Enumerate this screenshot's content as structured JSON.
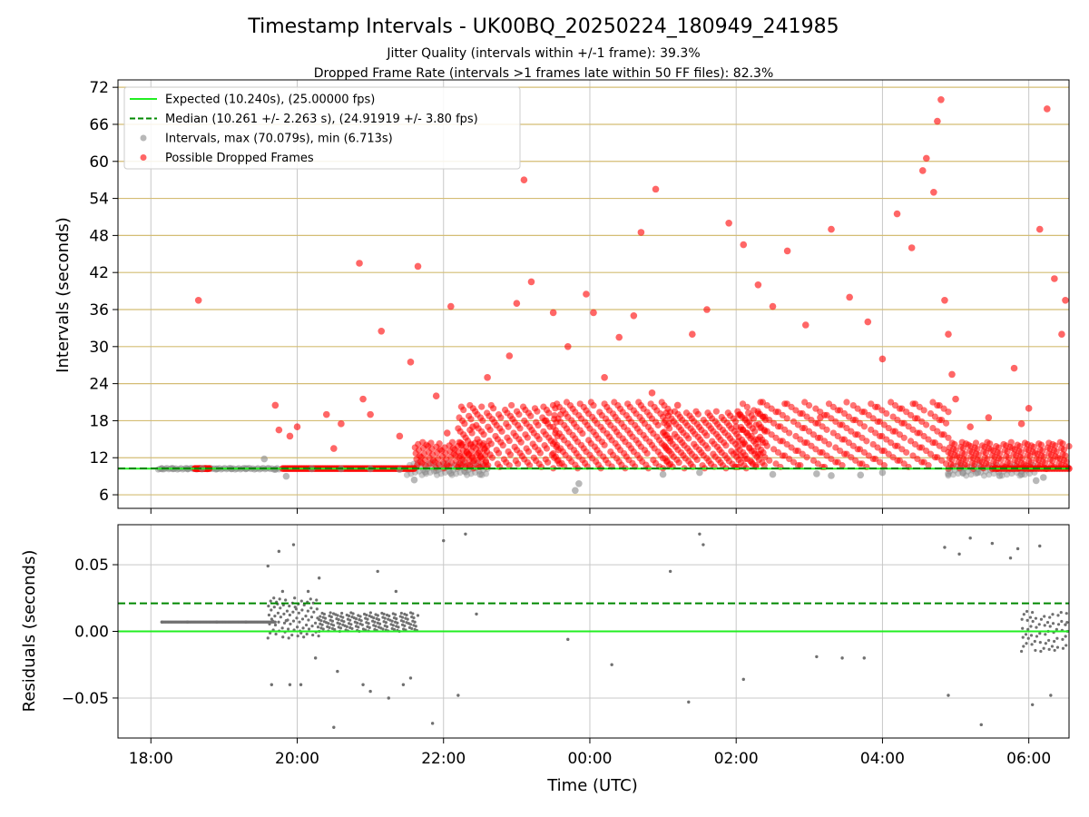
{
  "chart_data": [
    {
      "type": "scatter",
      "title": "Timestamp Intervals - UK00BQ_20250224_180949_241985",
      "subtitle_1": "Jitter Quality (intervals within +/-1 frame): 39.3%",
      "subtitle_2": "Dropped Frame Rate (intervals >1 frames late within 50 FF files): 82.3%",
      "xlabel": "",
      "ylabel": "Intervals (seconds)",
      "xlim_hours": [
        17.55,
        30.55
      ],
      "ylim": [
        3.8,
        73.2
      ],
      "yticks": [
        6,
        12,
        18,
        24,
        30,
        36,
        42,
        48,
        54,
        60,
        66,
        72
      ],
      "ytick_labels": [
        "6",
        "12",
        "18",
        "24",
        "30",
        "36",
        "42",
        "48",
        "54",
        "60",
        "66",
        "72"
      ],
      "grid": true,
      "hgrid_color": "#d4bd74",
      "legend_position": "top-left",
      "colors": {
        "expected": "#22ee22",
        "median": "#008800",
        "intervals": "#888888",
        "dropped": "#ff0000"
      },
      "reference_lines": {
        "expected_y": 10.24,
        "median_y": 10.261
      },
      "legend": [
        {
          "label": "Expected (10.240s), (25.00000 fps)",
          "kind": "solid-line",
          "color": "#22ee22"
        },
        {
          "label": "Median (10.261 +/- 2.263 s), (24.91919 +/- 3.80 fps)",
          "kind": "dashed-line",
          "color": "#008800"
        },
        {
          "label": "Intervals, max (70.079s), min (6.713s)",
          "kind": "marker",
          "color": "#888888"
        },
        {
          "label": "Possible Dropped Frames",
          "kind": "marker",
          "color": "#ff0000"
        }
      ],
      "series": [
        {
          "name": "Intervals, max (70.079s), min (6.713s)",
          "x_hours": [
            18.15,
            18.3,
            18.5,
            18.7,
            18.9,
            19.1,
            19.3,
            19.55,
            19.7,
            19.85,
            20.2,
            20.6,
            21.0,
            21.4,
            21.6,
            21.75,
            21.9,
            22.1,
            22.3,
            22.5,
            23.8,
            23.85,
            25.0,
            25.5,
            26.5,
            27.1,
            27.3,
            27.7,
            28.0,
            28.9,
            29.1,
            29.3,
            29.6,
            29.9,
            30.1,
            30.2
          ],
          "y": [
            10.2,
            10.2,
            10.2,
            10.25,
            10.2,
            10.2,
            10.25,
            11.8,
            10.1,
            9.0,
            10.2,
            10.2,
            10.2,
            10.1,
            8.4,
            9.7,
            9.9,
            9.5,
            9.7,
            9.3,
            6.7,
            7.8,
            9.3,
            9.6,
            9.3,
            9.4,
            9.1,
            9.2,
            9.6,
            9.4,
            9.5,
            9.6,
            9.1,
            9.3,
            8.3,
            8.8
          ]
        },
        {
          "name": "Possible Dropped Frames",
          "x_hours": [
            18.65,
            19.7,
            19.75,
            19.9,
            20.0,
            20.4,
            20.5,
            20.6,
            20.85,
            20.9,
            21.0,
            21.15,
            21.4,
            21.55,
            21.65,
            21.9,
            22.05,
            22.1,
            22.4,
            22.6,
            22.9,
            23.0,
            23.1,
            23.2,
            23.4,
            23.5,
            23.7,
            23.95,
            24.05,
            24.2,
            24.4,
            24.6,
            24.7,
            24.85,
            24.9,
            25.2,
            25.4,
            25.6,
            25.9,
            26.1,
            26.3,
            26.5,
            26.7,
            26.95,
            27.15,
            27.3,
            27.55,
            27.8,
            28.0,
            28.2,
            28.4,
            28.55,
            28.6,
            28.7,
            28.75,
            28.8,
            28.85,
            28.9,
            28.95,
            29.0,
            29.2,
            29.45,
            29.8,
            29.9,
            30.0,
            30.15,
            30.25,
            30.35,
            30.45,
            30.5
          ],
          "y": [
            37.5,
            20.5,
            16.5,
            15.5,
            17.0,
            19.0,
            13.5,
            17.5,
            43.5,
            21.5,
            19.0,
            32.5,
            15.5,
            27.5,
            43.0,
            22.0,
            16.0,
            36.5,
            17.0,
            25.0,
            28.5,
            37.0,
            57.0,
            40.5,
            18.0,
            35.5,
            30.0,
            38.5,
            35.5,
            25.0,
            31.5,
            35.0,
            48.5,
            22.5,
            55.5,
            20.5,
            32.0,
            36.0,
            50.0,
            46.5,
            40.0,
            36.5,
            45.5,
            33.5,
            18.5,
            49.0,
            38.0,
            34.0,
            28.0,
            51.5,
            46.0,
            58.5,
            60.5,
            55.0,
            66.5,
            70.0,
            37.5,
            32.0,
            25.5,
            21.5,
            17.0,
            18.5,
            26.5,
            17.5,
            20.0,
            49.0,
            68.5,
            41.0,
            32.0,
            37.5
          ]
        }
      ]
    },
    {
      "type": "scatter",
      "xlabel": "Time (UTC)",
      "ylabel": "Residuals (seconds)",
      "xlim_hours": [
        17.55,
        30.55
      ],
      "ylim": [
        -0.08,
        0.08
      ],
      "yticks": [
        -0.05,
        0.0,
        0.05
      ],
      "ytick_labels": [
        "−0.05",
        "0.00",
        "0.05"
      ],
      "xticks_hours": [
        18,
        20,
        22,
        24,
        26,
        28,
        30
      ],
      "xtick_labels": [
        "18:00",
        "20:00",
        "22:00",
        "00:00",
        "02:00",
        "04:00",
        "06:00"
      ],
      "grid": true,
      "reference_lines": {
        "zero_y": 0.0,
        "median_y": 0.021
      },
      "series": [
        {
          "name": "",
          "x_hours": [
            18.15,
            18.5,
            18.9,
            19.3,
            19.6,
            19.65,
            19.75,
            19.8,
            19.85,
            19.9,
            19.95,
            20.05,
            20.15,
            20.25,
            20.3,
            20.5,
            20.55,
            20.9,
            21.0,
            21.1,
            21.25,
            21.35,
            21.45,
            21.55,
            21.85,
            22.0,
            22.2,
            22.3,
            22.45,
            23.7,
            24.3,
            25.1,
            25.35,
            25.5,
            25.55,
            26.1,
            27.1,
            27.45,
            27.75,
            28.85,
            28.9,
            29.05,
            29.2,
            29.35,
            29.5,
            29.75,
            29.85,
            30.05,
            30.15,
            30.3,
            30.5
          ],
          "y": [
            0.007,
            0.007,
            0.007,
            0.007,
            0.049,
            -0.04,
            0.06,
            0.03,
            0.008,
            -0.04,
            0.065,
            -0.04,
            0.03,
            -0.02,
            0.04,
            -0.072,
            -0.03,
            -0.04,
            -0.045,
            0.045,
            -0.05,
            0.03,
            -0.04,
            -0.035,
            -0.069,
            0.068,
            -0.048,
            0.073,
            0.013,
            -0.006,
            -0.025,
            0.045,
            -0.053,
            0.073,
            0.065,
            -0.036,
            -0.019,
            -0.02,
            -0.02,
            0.063,
            -0.048,
            0.058,
            0.07,
            -0.07,
            0.066,
            0.055,
            0.062,
            -0.055,
            0.064,
            -0.048,
            0.005
          ]
        }
      ]
    }
  ]
}
